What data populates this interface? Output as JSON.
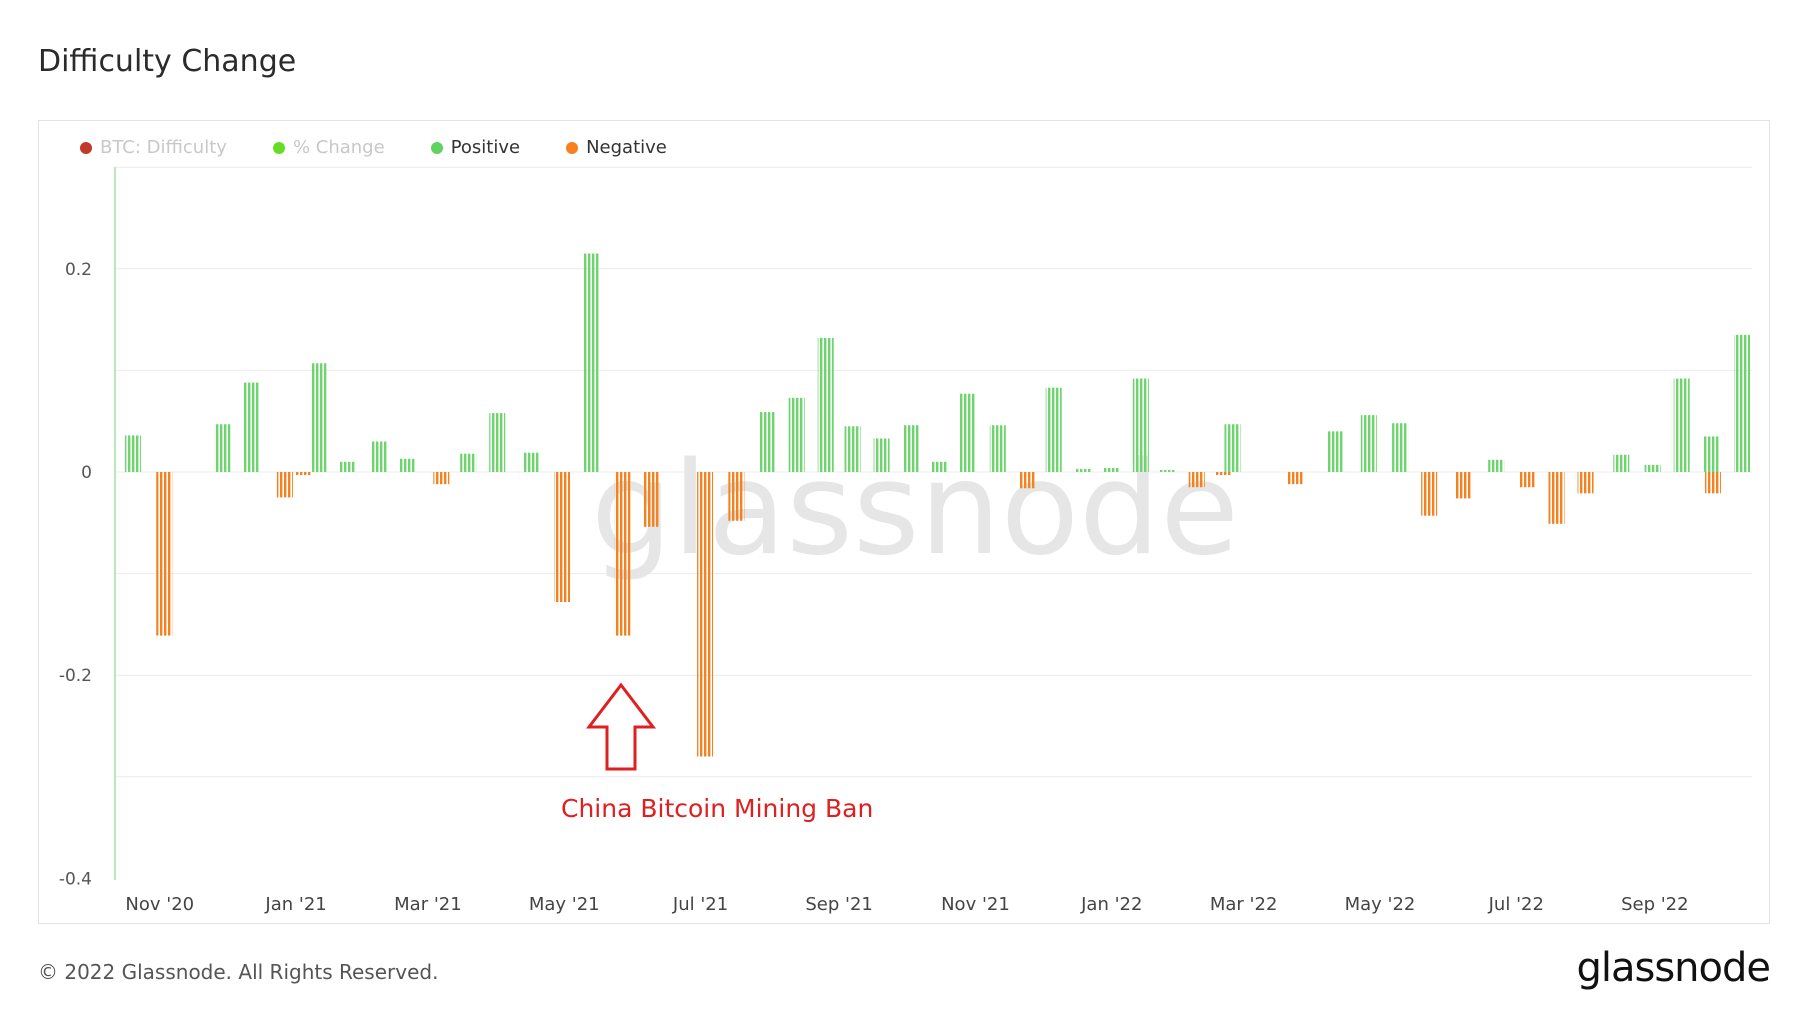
{
  "title": "Difficulty Change",
  "footer": "© 2022 Glassnode. All Rights Reserved.",
  "logo": "glassnode",
  "watermark": "glassnode",
  "legend": [
    {
      "label": "BTC: Difficulty",
      "color": "#c0392b",
      "active": false
    },
    {
      "label": "% Change",
      "color": "#66dd22",
      "active": false
    },
    {
      "label": "Positive",
      "color": "#5fd35f",
      "active": true
    },
    {
      "label": "Negative",
      "color": "#f5821f",
      "active": true
    }
  ],
  "annotation": {
    "text": "China Bitcoin Mining Ban",
    "color": "#e02020"
  },
  "colors": {
    "positive": "#6cd66c",
    "negative": "#f5821f",
    "grid": "#ececec",
    "axis": "#b9e8b9"
  },
  "chart_data": {
    "type": "bar",
    "title": "Difficulty Change",
    "xlabel": "",
    "ylabel": "",
    "ylim": [
      -0.4,
      0.3
    ],
    "yticks": [
      0.2,
      0,
      -0.2,
      -0.4
    ],
    "ytick_labels": [
      "0.2",
      "0",
      "-0.2",
      "-0.4"
    ],
    "xlim": [
      "2020-10-16",
      "2022-10-10"
    ],
    "xticks": [
      "2020-11-01",
      "2021-01-01",
      "2021-03-01",
      "2021-05-01",
      "2021-07-01",
      "2021-09-01",
      "2021-11-01",
      "2022-01-01",
      "2022-03-01",
      "2022-05-01",
      "2022-07-01",
      "2022-09-01"
    ],
    "xtick_labels": [
      "Nov '20",
      "Jan '21",
      "Mar '21",
      "May '21",
      "Jul '21",
      "Sep '21",
      "Nov '21",
      "Jan '22",
      "Mar '22",
      "May '22",
      "Jul '22",
      "Sep '22"
    ],
    "grid": true,
    "legend_position": "top-left",
    "series": [
      {
        "name": "Positive",
        "x": [
          "2020-10-20",
          "2020-11-29",
          "2020-12-12",
          "2021-01-11",
          "2021-01-24",
          "2021-02-07",
          "2021-02-20",
          "2021-03-19",
          "2021-04-01",
          "2021-04-16",
          "2021-05-13",
          "2021-07-31",
          "2021-08-13",
          "2021-08-26",
          "2021-09-07",
          "2021-09-20",
          "2021-10-03",
          "2021-10-16",
          "2021-10-28",
          "2021-11-11",
          "2021-12-06",
          "2021-12-19",
          "2022-01-01",
          "2022-01-14",
          "2022-01-26",
          "2022-02-24",
          "2022-04-11",
          "2022-04-26",
          "2022-05-10",
          "2022-06-22",
          "2022-08-17",
          "2022-08-31",
          "2022-09-13",
          "2022-09-26",
          "2022-10-10"
        ],
        "values": [
          0.036,
          0.047,
          0.088,
          0.107,
          0.01,
          0.03,
          0.013,
          0.018,
          0.058,
          0.019,
          0.215,
          0.059,
          0.073,
          0.132,
          0.045,
          0.033,
          0.046,
          0.01,
          0.077,
          0.046,
          0.083,
          0.003,
          0.004,
          0.092,
          0.002,
          0.047,
          0.04,
          0.056,
          0.048,
          0.012,
          0.017,
          0.007,
          0.092,
          0.035,
          0.135
        ]
      },
      {
        "name": "Negative",
        "x": [
          "2020-11-03",
          "2020-12-27",
          "2021-01-04",
          "2021-03-07",
          "2021-04-30",
          "2021-05-27",
          "2021-06-09",
          "2021-07-03",
          "2021-07-17",
          "2021-11-24",
          "2022-02-08",
          "2022-02-20",
          "2022-03-24",
          "2022-05-23",
          "2022-06-07",
          "2022-07-06",
          "2022-07-19",
          "2022-08-01",
          "2022-09-27"
        ],
        "values": [
          -0.161,
          -0.025,
          -0.003,
          -0.012,
          -0.128,
          -0.161,
          -0.054,
          -0.28,
          -0.048,
          -0.016,
          -0.015,
          -0.003,
          -0.012,
          -0.043,
          -0.026,
          -0.015,
          -0.051,
          -0.021,
          -0.021
        ]
      }
    ]
  }
}
